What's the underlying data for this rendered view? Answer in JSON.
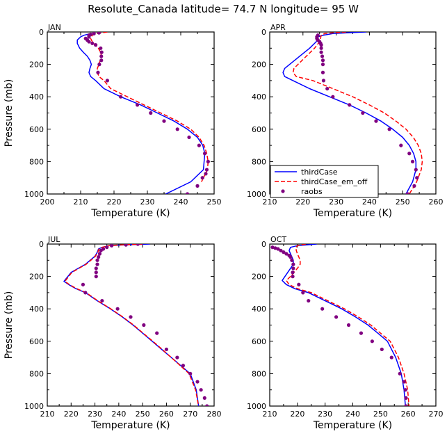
{
  "figure_title": "Resolute_Canada  latitude= 74.7 N longitude= 95 W",
  "legend": {
    "entries": [
      {
        "label": "thirdCase",
        "color": "#0000ff",
        "style": "solid"
      },
      {
        "label": "thirdCase_em_off",
        "color": "#ff0000",
        "style": "dashed"
      },
      {
        "label": "raobs",
        "color": "#800080",
        "style": "dots"
      }
    ]
  },
  "chart_data": [
    {
      "type": "line",
      "panel": "JAN",
      "xlabel": "Temperature (K)",
      "ylabel": "Pressure (mb)",
      "xlim": [
        200,
        250
      ],
      "ylim": [
        0,
        1000
      ],
      "y_inverted": true,
      "xticks": [
        200,
        210,
        220,
        230,
        240,
        250
      ],
      "yticks": [
        0,
        200,
        400,
        600,
        800,
        1000
      ],
      "series": [
        {
          "name": "thirdCase",
          "style": "solid",
          "color": "#0000ff",
          "x": [
            213,
            211,
            210,
            209.5,
            209,
            209,
            209.7,
            210.8,
            212,
            212.8,
            213.2,
            212.8,
            212.5,
            213,
            214.5,
            217,
            222,
            228,
            233,
            238,
            242,
            245,
            246.6,
            247.2,
            246.8,
            243,
            235.5
          ],
          "y": [
            10,
            20,
            30,
            40,
            50,
            70,
            100,
            125,
            150,
            175,
            200,
            225,
            250,
            275,
            300,
            350,
            400,
            450,
            500,
            550,
            600,
            650,
            700,
            750,
            850,
            925,
            1000
          ]
        },
        {
          "name": "thirdCase_em_off",
          "style": "dashed",
          "color": "#ff0000",
          "x": [
            218,
            215,
            213.5,
            213,
            213.5,
            214.3,
            215.3,
            216,
            216.2,
            215.5,
            215,
            215,
            215.5,
            217,
            219,
            224,
            229,
            234,
            239,
            243,
            245.5,
            247,
            247.8,
            248.2,
            248,
            246.2
          ],
          "y": [
            0,
            10,
            20,
            40,
            60,
            80,
            100,
            125,
            150,
            200,
            225,
            250,
            275,
            300,
            350,
            400,
            450,
            500,
            550,
            600,
            650,
            700,
            750,
            800,
            850,
            925
          ]
        },
        {
          "name": "raobs",
          "style": "dots",
          "color": "#800080",
          "x": [
            215.5,
            214,
            213,
            212.5,
            212.5,
            211.5,
            212,
            212.5,
            213.5,
            214.5,
            216,
            216.3,
            216.2,
            216.2,
            215.6,
            215.2,
            218,
            222,
            227,
            231,
            235,
            239,
            242.5,
            245.5,
            247.2,
            248.2,
            247.8,
            247.5,
            246.5,
            245,
            242
          ],
          "y": [
            5,
            10,
            15,
            20,
            30,
            40,
            50,
            60,
            70,
            80,
            100,
            125,
            150,
            175,
            200,
            250,
            300,
            400,
            450,
            500,
            550,
            600,
            650,
            700,
            750,
            800,
            850,
            875,
            900,
            950,
            1000
          ]
        }
      ]
    },
    {
      "type": "line",
      "panel": "APR",
      "xlabel": "Temperature (K)",
      "ylabel": "Pressure (mb)",
      "xlim": [
        210,
        260
      ],
      "ylim": [
        0,
        1000
      ],
      "y_inverted": true,
      "xticks": [
        210,
        220,
        230,
        240,
        250,
        260
      ],
      "yticks": [
        0,
        200,
        400,
        600,
        800,
        1000
      ],
      "series": [
        {
          "name": "thirdCase",
          "style": "solid",
          "color": "#0000ff",
          "x": [
            239,
            233,
            229,
            226,
            224.5,
            224,
            222,
            219,
            216,
            214.5,
            214,
            214.5,
            217,
            222,
            228,
            234,
            239,
            243.5,
            247,
            250,
            252,
            253.3,
            254,
            254,
            253,
            251
          ],
          "y": [
            0,
            5,
            10,
            20,
            30,
            60,
            100,
            150,
            200,
            225,
            250,
            275,
            300,
            350,
            400,
            450,
            500,
            550,
            600,
            650,
            700,
            750,
            800,
            850,
            925,
            1000
          ]
        },
        {
          "name": "thirdCase_em_off",
          "style": "dashed",
          "color": "#ff0000",
          "x": [
            233,
            229,
            226.5,
            225.5,
            225.4,
            225,
            223.5,
            221,
            218.5,
            217.3,
            217,
            218,
            223,
            229,
            235,
            240,
            244.5,
            248,
            251,
            253.2,
            254.7,
            255.6,
            255.9,
            255.6,
            254.2,
            252
          ],
          "y": [
            0,
            5,
            10,
            20,
            30,
            60,
            100,
            150,
            200,
            225,
            250,
            275,
            300,
            350,
            400,
            450,
            500,
            550,
            600,
            650,
            700,
            750,
            800,
            850,
            925,
            1000
          ]
        },
        {
          "name": "raobs",
          "style": "dots",
          "color": "#800080",
          "x": [
            224.5,
            224.2,
            224.2,
            224.5,
            225,
            225.3,
            225.5,
            225.5,
            225.5,
            225.8,
            226,
            226,
            226,
            226.2,
            227.3,
            229,
            234,
            238,
            242,
            246,
            249.5,
            252,
            253,
            254,
            254.3,
            253.5,
            251.5
          ],
          "y": [
            20,
            30,
            40,
            50,
            60,
            70,
            80,
            100,
            125,
            150,
            175,
            200,
            250,
            300,
            350,
            400,
            450,
            500,
            550,
            600,
            700,
            750,
            800,
            850,
            900,
            950,
            1000
          ]
        }
      ]
    },
    {
      "type": "line",
      "panel": "JUL",
      "xlabel": "Temperature (K)",
      "ylabel": "Pressure (mb)",
      "xlim": [
        210,
        280
      ],
      "ylim": [
        0,
        1000
      ],
      "y_inverted": true,
      "xticks": [
        210,
        220,
        230,
        240,
        250,
        260,
        270,
        280
      ],
      "yticks": [
        0,
        200,
        400,
        600,
        800,
        1000
      ],
      "series": [
        {
          "name": "thirdCase",
          "style": "solid",
          "color": "#0000ff",
          "x": [
            253,
            242,
            236,
            233,
            231.5,
            231,
            230,
            228,
            226,
            223,
            220,
            217,
            219,
            222,
            226,
            231,
            236.5,
            241.5,
            246,
            250,
            254,
            258,
            262,
            266,
            270,
            272.5,
            273.5
          ],
          "y": [
            0,
            5,
            10,
            20,
            30,
            50,
            75,
            100,
            125,
            150,
            175,
            230,
            250,
            275,
            300,
            350,
            400,
            450,
            500,
            550,
            600,
            650,
            700,
            750,
            800,
            900,
            1000
          ]
        },
        {
          "name": "thirdCase_em_off",
          "style": "dashed",
          "color": "#ff0000",
          "x": [
            250,
            241,
            236,
            233,
            231.7,
            231.2,
            230.2,
            228.3,
            226.3,
            223.3,
            220.3,
            217.4,
            219.3,
            222.3,
            226.3,
            231.2,
            236.7,
            241.7,
            246.2,
            250.2,
            254.3,
            258.2,
            262,
            265.8,
            269.5,
            272.2,
            273.5
          ],
          "y": [
            0,
            5,
            10,
            20,
            30,
            50,
            75,
            100,
            125,
            150,
            175,
            230,
            250,
            275,
            300,
            350,
            400,
            450,
            500,
            550,
            600,
            650,
            700,
            750,
            800,
            900,
            1000
          ]
        },
        {
          "name": "raobs",
          "style": "dots",
          "color": "#800080",
          "x": [
            248,
            243,
            237,
            235,
            233.5,
            232.5,
            232,
            231.5,
            231,
            231,
            230.5,
            230.5,
            230.5,
            225,
            226,
            233,
            239.5,
            245,
            250.5,
            256,
            260,
            264.5,
            267,
            270,
            273,
            274.5,
            276,
            277
          ],
          "y": [
            0,
            5,
            10,
            20,
            30,
            40,
            60,
            80,
            100,
            125,
            150,
            175,
            200,
            250,
            300,
            350,
            400,
            450,
            500,
            550,
            650,
            700,
            750,
            800,
            850,
            900,
            950,
            1000
          ]
        }
      ]
    },
    {
      "type": "line",
      "panel": "OCT",
      "xlabel": "Temperature (K)",
      "ylabel": "Pressure (mb)",
      "xlim": [
        210,
        270
      ],
      "ylim": [
        0,
        1000
      ],
      "y_inverted": true,
      "xticks": [
        210,
        220,
        230,
        240,
        250,
        260,
        270
      ],
      "yticks": [
        0,
        200,
        400,
        600,
        800,
        1000
      ],
      "series": [
        {
          "name": "thirdCase",
          "style": "solid",
          "color": "#0000ff",
          "x": [
            227,
            220,
            217.5,
            217,
            217.5,
            218,
            218.5,
            218.5,
            217.5,
            215.5,
            214.5,
            216,
            219,
            224,
            230,
            236,
            241,
            245.5,
            249,
            252.5,
            255.5,
            257.5,
            258.5,
            259
          ],
          "y": [
            0,
            10,
            20,
            40,
            60,
            80,
            100,
            125,
            150,
            200,
            225,
            250,
            275,
            300,
            350,
            400,
            450,
            500,
            550,
            600,
            700,
            800,
            900,
            1000
          ]
        },
        {
          "name": "thirdCase_em_off",
          "style": "dashed",
          "color": "#ff0000",
          "x": [
            223,
            220,
            219.5,
            219.6,
            220,
            220.5,
            221,
            221,
            220,
            217.5,
            216,
            217,
            220,
            225,
            231,
            237,
            242,
            246.5,
            250,
            253.5,
            256.5,
            258.5,
            259.8,
            260.3
          ],
          "y": [
            0,
            10,
            20,
            40,
            60,
            80,
            100,
            125,
            150,
            200,
            225,
            250,
            275,
            300,
            350,
            400,
            450,
            500,
            550,
            600,
            700,
            800,
            900,
            1000
          ]
        },
        {
          "name": "raobs",
          "style": "dots",
          "color": "#800080",
          "x": [
            211,
            212,
            213,
            214,
            215,
            216,
            217,
            217.5,
            218,
            218.5,
            218.5,
            218.3,
            218.3,
            220.5,
            222,
            224,
            229,
            234,
            238.5,
            243,
            247,
            250.5,
            254,
            257,
            258.5,
            259,
            259.2,
            259.2
          ],
          "y": [
            20,
            25,
            30,
            40,
            50,
            60,
            70,
            80,
            100,
            125,
            150,
            175,
            200,
            250,
            300,
            350,
            400,
            450,
            500,
            550,
            600,
            650,
            700,
            800,
            850,
            900,
            950,
            1000
          ]
        }
      ]
    }
  ]
}
